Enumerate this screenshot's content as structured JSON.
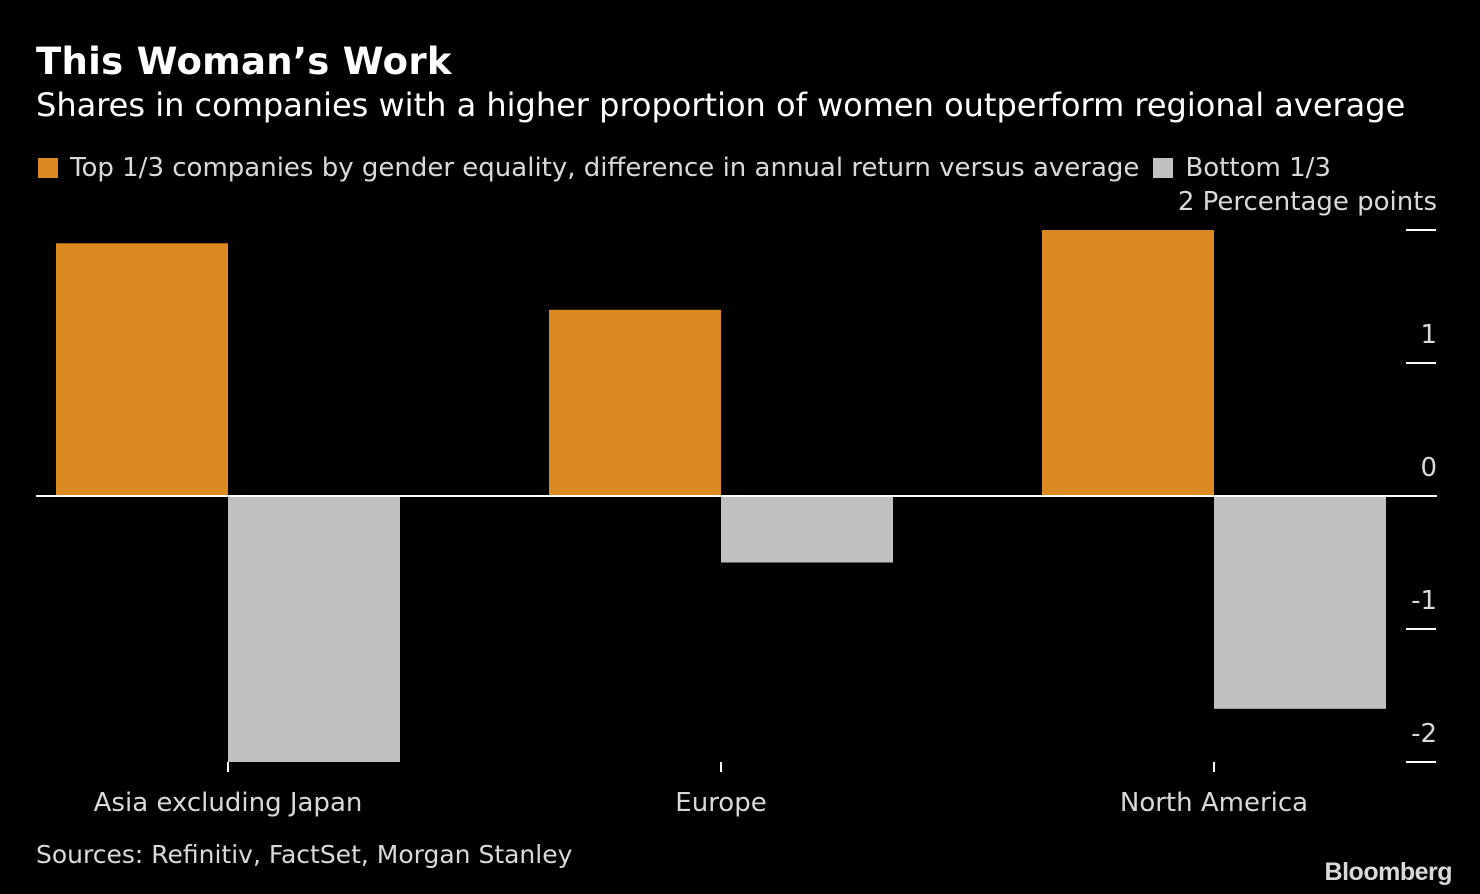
{
  "title": "This Woman’s Work",
  "subtitle": "Shares in companies with a higher proportion of women outperform regional average",
  "legend": {
    "top_label": "Top 1/3 companies by gender equality, difference in annual return versus average",
    "bottom_label": "Bottom 1/3"
  },
  "source": "Sources: Refinitiv, FactSet, Morgan Stanley",
  "brand": "Bloomberg",
  "colors": {
    "top": "#DB8A22",
    "bottom": "#C0C0C0",
    "axis": "#FFFFFF",
    "tick_text": "#D9D9D9"
  },
  "chart_data": {
    "type": "bar",
    "categories": [
      "Asia excluding Japan",
      "Europe",
      "North America"
    ],
    "series": [
      {
        "name": "Top 1/3 companies by gender equality, difference in annual return versus average",
        "values": [
          1.9,
          1.4,
          2.0
        ]
      },
      {
        "name": "Bottom 1/3",
        "values": [
          -2.0,
          -0.5,
          -1.6
        ]
      }
    ],
    "ylim": [
      -2,
      2
    ],
    "yticks": [
      2,
      1,
      0,
      -1,
      -2
    ],
    "ytick_labels": [
      "2 Percentage points",
      "1",
      "0",
      "-1",
      "-2"
    ],
    "ylabel": "Percentage points",
    "xlabel": ""
  }
}
